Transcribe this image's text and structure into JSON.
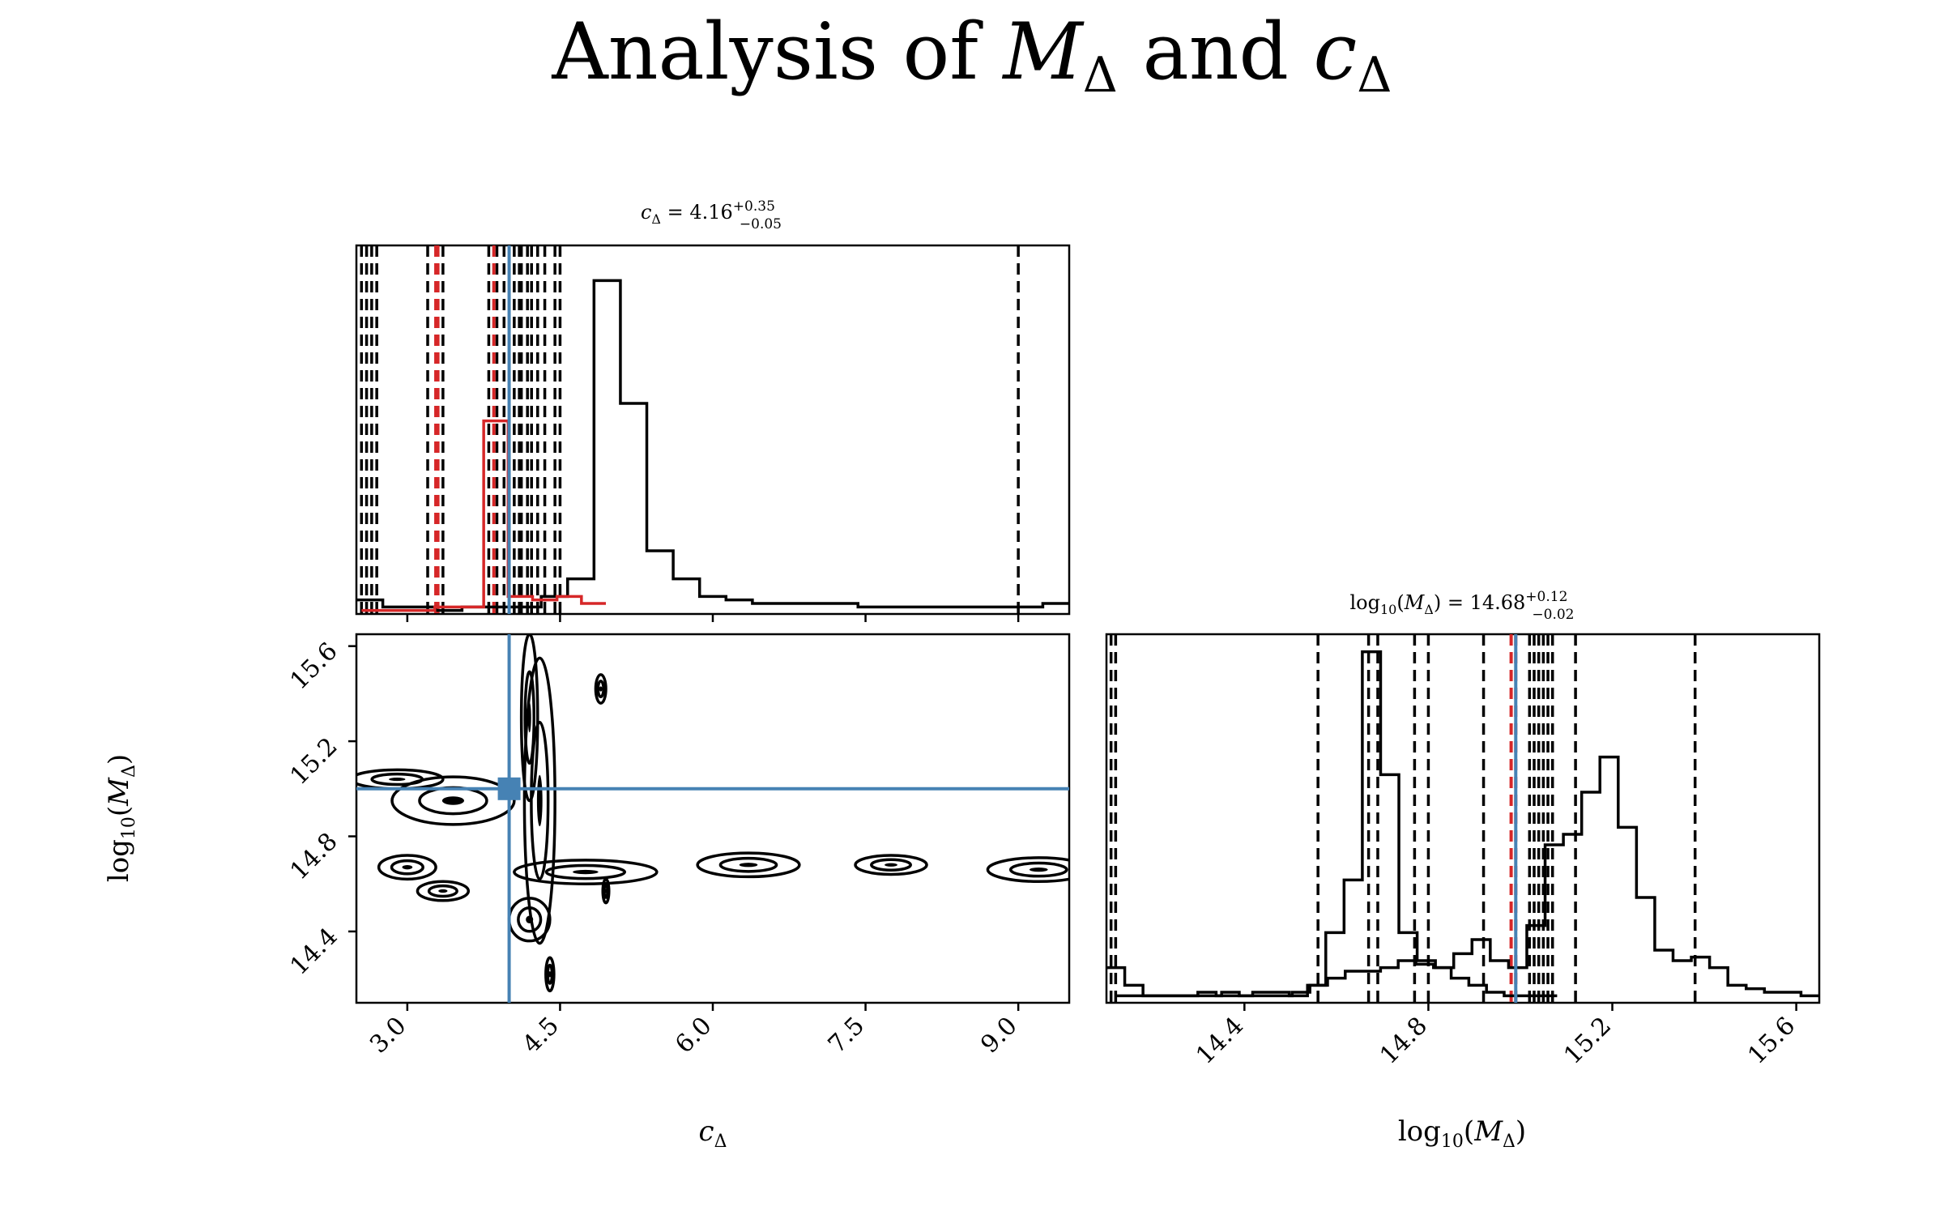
{
  "figure": {
    "title": {
      "prefix": "Analysis of ",
      "m": "M",
      "sub1": "Δ",
      "mid": " and ",
      "c": "c",
      "sub2": "Δ"
    }
  },
  "colors": {
    "ink": "#000000",
    "truth": "#4682b4",
    "alt": "#d62728"
  },
  "chart_data": [
    {
      "type": "histogram",
      "panel": "c_delta-marginal",
      "title_text": {
        "var": "c",
        "sub": "Δ",
        "eq": " = 4.16",
        "sup": "+0.35",
        "subv": "−0.05"
      },
      "xlim": [
        2.5,
        9.5
      ],
      "truth_line": 4.0,
      "series": [
        {
          "color": "#000000",
          "values": [
            0.04,
            0.02,
            0.02,
            0.01,
            0.02,
            0.02,
            0.02,
            0.05,
            0.1,
            0.95,
            0.6,
            0.18,
            0.1,
            0.05,
            0.04,
            0.03,
            0.03,
            0.03,
            0.03,
            0.02,
            0.02,
            0.02,
            0.02,
            0.02,
            0.02,
            0.02,
            0.03
          ]
        },
        {
          "color": "#d62728",
          "values": [
            0.01,
            0.01,
            0.01,
            0.02,
            0.02,
            0.55,
            0.05,
            0.04,
            0.05,
            0.03
          ]
        }
      ],
      "quantile_lines": [
        2.55,
        2.6,
        2.65,
        2.7,
        3.2,
        3.35,
        3.8,
        3.85,
        3.88,
        3.95,
        4.05,
        4.1,
        4.12,
        4.18,
        4.22,
        4.28,
        4.35,
        4.45,
        4.5,
        9.0
      ],
      "alt_quantile_lines": [
        3.28,
        3.3,
        3.85
      ]
    },
    {
      "type": "contour",
      "panel": "joint",
      "xlim": [
        2.5,
        9.5
      ],
      "ylim": [
        14.1,
        15.65
      ],
      "xticks": [
        "3.0",
        "4.5",
        "6.0",
        "7.5",
        "9.0"
      ],
      "yticks": [
        "14.4",
        "14.8",
        "15.2",
        "15.6"
      ],
      "xlabel": {
        "var": "c",
        "sub": "Δ"
      },
      "ylabel": {
        "fn": "log",
        "fnsub": "10",
        "var": "M",
        "sub": "Δ"
      },
      "truth": [
        4.0,
        15.0
      ],
      "blobs": [
        [
          3.0,
          14.67,
          0.28,
          0.05
        ],
        [
          3.35,
          14.57,
          0.25,
          0.04
        ],
        [
          4.75,
          14.65,
          0.7,
          0.05
        ],
        [
          6.35,
          14.68,
          0.5,
          0.05
        ],
        [
          7.75,
          14.68,
          0.35,
          0.04
        ],
        [
          9.2,
          14.66,
          0.5,
          0.05
        ],
        [
          3.45,
          14.95,
          0.6,
          0.1
        ],
        [
          2.9,
          15.04,
          0.45,
          0.04
        ],
        [
          4.3,
          14.95,
          0.15,
          0.6
        ],
        [
          4.2,
          15.3,
          0.08,
          0.35
        ],
        [
          4.9,
          15.42,
          0.05,
          0.06
        ],
        [
          4.95,
          14.57,
          0.03,
          0.05
        ],
        [
          4.4,
          14.22,
          0.04,
          0.07
        ],
        [
          4.2,
          14.45,
          0.2,
          0.09
        ]
      ]
    },
    {
      "type": "histogram",
      "panel": "logM-marginal",
      "title_text": {
        "fn": "log",
        "fnsub": "10",
        "var": "M",
        "sub": "Δ",
        "eq": " = 14.68",
        "sup": "+0.12",
        "subv": "−0.02"
      },
      "xlim": [
        14.1,
        15.65
      ],
      "xticks": [
        "14.4",
        "14.8",
        "15.2",
        "15.6"
      ],
      "xlabel": {
        "fn": "log",
        "fnsub": "10",
        "var": "M",
        "sub": "Δ"
      },
      "truth_line": 14.99,
      "series": [
        {
          "color": "#000000",
          "values": [
            0.1,
            0.05,
            0.02,
            0.02,
            0.02,
            0.03,
            0.02,
            0.02,
            0.03,
            0.03,
            0.02,
            0.05,
            0.2,
            0.35,
            1.0,
            0.65,
            0.2,
            0.12,
            0.1,
            0.14,
            0.18,
            0.12,
            0.1,
            0.22,
            0.45,
            0.48,
            0.6,
            0.7,
            0.5,
            0.3,
            0.15,
            0.12,
            0.13,
            0.1,
            0.05,
            0.04,
            0.03,
            0.03,
            0.02
          ]
        },
        {
          "color": "#000000",
          "values": [
            0.02,
            0.02,
            0.02,
            0.02,
            0.02,
            0.02,
            0.03,
            0.02,
            0.02,
            0.02,
            0.03,
            0.05,
            0.07,
            0.09,
            0.09,
            0.1,
            0.12,
            0.11,
            0.1,
            0.07,
            0.05,
            0.03,
            0.02,
            0.02,
            0.02
          ]
        }
      ],
      "quantile_lines": [
        14.11,
        14.12,
        14.56,
        14.67,
        14.69,
        14.77,
        14.8,
        14.92,
        15.02,
        15.03,
        15.04,
        15.05,
        15.06,
        15.07,
        15.12,
        15.38
      ],
      "alt_quantile_lines": [
        14.98,
        14.99
      ]
    }
  ]
}
